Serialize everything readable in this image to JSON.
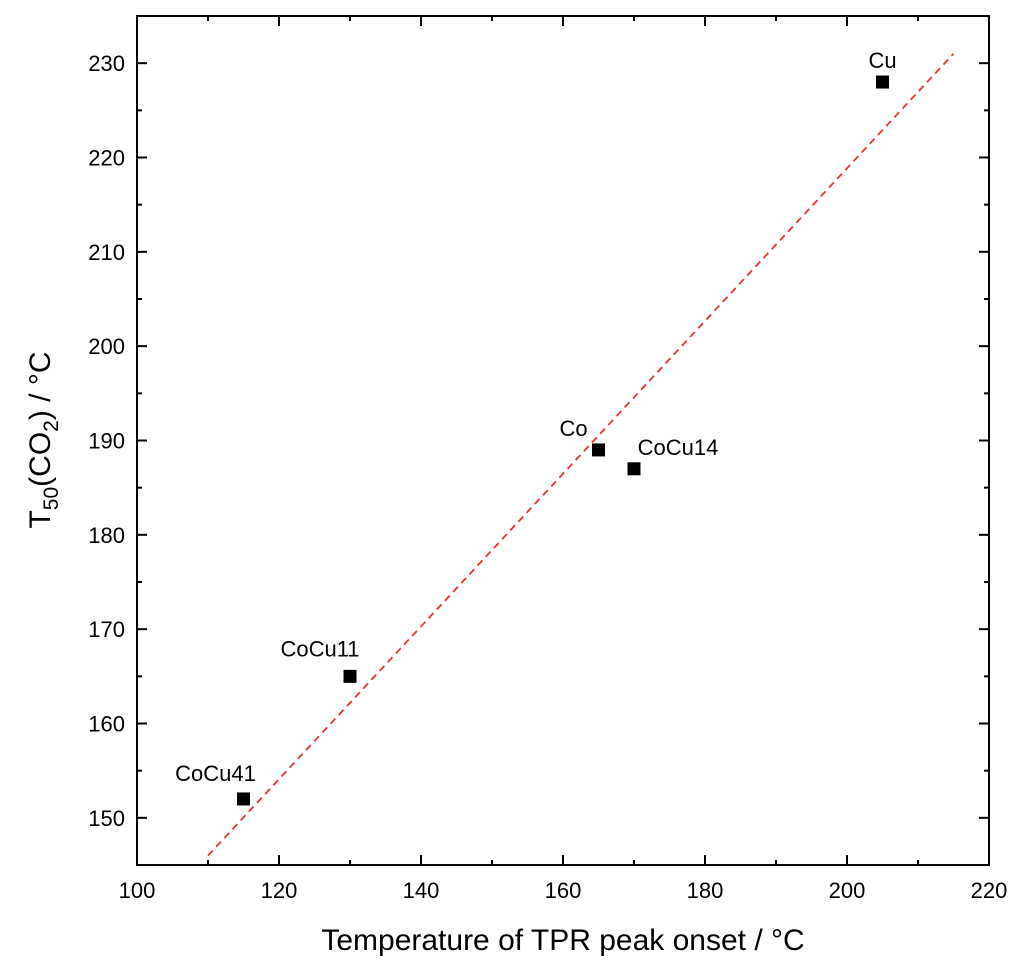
{
  "chart_data": {
    "type": "scatter",
    "title": "",
    "xlabel": "Temperature of TPR peak onset / °C",
    "ylabel": {
      "main": "T",
      "sub1": "50",
      "middle": "(CO",
      "sub2": "2",
      "tail": ") / °C"
    },
    "xlim": [
      100,
      220
    ],
    "ylim": [
      145,
      235
    ],
    "x_ticks": [
      100,
      120,
      140,
      160,
      180,
      200,
      220
    ],
    "y_ticks": [
      150,
      160,
      170,
      180,
      190,
      200,
      210,
      220,
      230
    ],
    "grid": false,
    "legend": "none",
    "marker": "square",
    "marker_color": "#000000",
    "points": [
      {
        "label": "CoCu41",
        "x": 115,
        "y": 152
      },
      {
        "label": "CoCu11",
        "x": 130,
        "y": 165
      },
      {
        "label": "Co",
        "x": 165,
        "y": 189
      },
      {
        "label": "CoCu14",
        "x": 170,
        "y": 187
      },
      {
        "label": "Cu",
        "x": 205,
        "y": 228
      }
    ],
    "fit_line": {
      "style": "dashed",
      "color": "#e8312f",
      "x": [
        110,
        215
      ],
      "y": [
        146,
        231
      ]
    }
  }
}
